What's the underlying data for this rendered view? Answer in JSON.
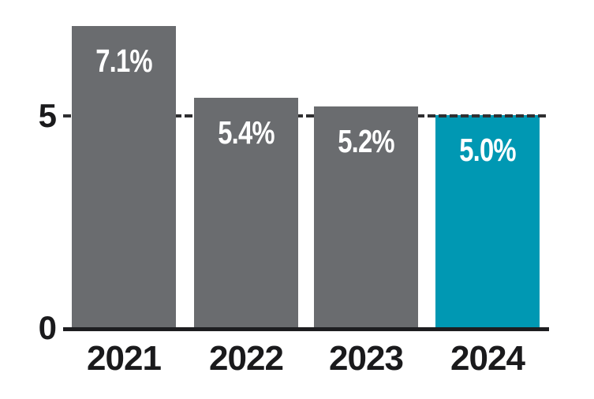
{
  "chart_data": {
    "type": "bar",
    "title": "",
    "xlabel": "",
    "ylabel": "",
    "categories": [
      "2021",
      "2022",
      "2023",
      "2024"
    ],
    "values": [
      7.1,
      5.4,
      5.2,
      5.0
    ],
    "bar_labels": [
      "7.1%",
      "5.4%",
      "5.2%",
      "5.0%"
    ],
    "bar_colors": [
      "#6a6c6f",
      "#6a6c6f",
      "#6a6c6f",
      "#0098b3"
    ],
    "highlight_index": 3,
    "value_label_color": "#ffffff",
    "ylim": [
      0,
      7.4
    ],
    "yticks": [
      {
        "value": 0,
        "label": "0"
      },
      {
        "value": 5,
        "label": "5"
      }
    ],
    "reference_line": {
      "value": 5,
      "style": "dashed",
      "color": "#2f2f31"
    },
    "grid": false,
    "legend_position": "none",
    "axis_line_color": "#1d1d20",
    "axis_text_color": "#1a1a1c",
    "background_color": "#ffffff"
  }
}
